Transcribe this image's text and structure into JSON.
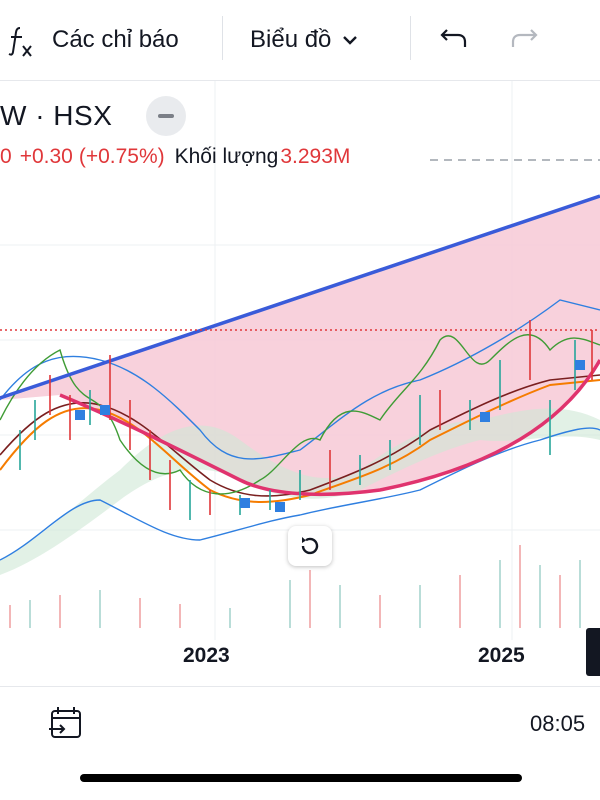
{
  "toolbar": {
    "indicators_label": "Các chỉ báo",
    "chart_type_label": "Biểu đồ"
  },
  "symbol": {
    "name": "W · HSX"
  },
  "quote": {
    "price_fragment": "0",
    "change": "+0.30",
    "change_pct": "(+0.75%)",
    "volume_label": "Khối lượng",
    "volume_value": "3.293M"
  },
  "axis": {
    "x_labels": [
      "2023",
      "2025"
    ]
  },
  "bottom": {
    "time": "08:05"
  },
  "colors": {
    "up": "#26a69a",
    "down": "#e0373a",
    "trendline": "#3a5bd9",
    "cup": "#e0336e",
    "fill": "#f7c9d6",
    "bollinger": "#2f7fe0"
  },
  "icons": [
    "fx-icon",
    "chevron-down-icon",
    "undo-icon",
    "redo-icon",
    "minus-icon",
    "reset-icon",
    "date-range-icon"
  ]
}
